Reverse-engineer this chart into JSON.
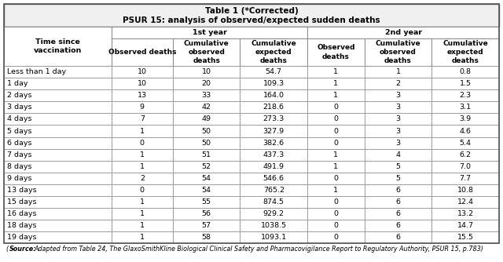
{
  "title_line1": "Table 1 (*Corrected)",
  "title_line2": "PSUR 15: analysis of observed/expected sudden deaths",
  "sub_headers": [
    "Observed deaths",
    "Cumulative\nobserved\ndeaths",
    "Cumulative\nexpected\ndeaths",
    "Observed\ndeaths",
    "Cumulative\nobserved\ndeaths",
    "Cumulative\nexpected\ndeaths"
  ],
  "rows": [
    [
      "Less than 1 day",
      "10",
      "10",
      "54.7",
      "1",
      "1",
      "0.8"
    ],
    [
      "1 day",
      "10",
      "20",
      "109.3",
      "1",
      "2",
      "1.5"
    ],
    [
      "2 days",
      "13",
      "33",
      "164.0",
      "1",
      "3",
      "2.3"
    ],
    [
      "3 days",
      "9",
      "42",
      "218.6",
      "0",
      "3",
      "3.1"
    ],
    [
      "4 days",
      "7",
      "49",
      "273.3",
      "0",
      "3",
      "3.9"
    ],
    [
      "5 days",
      "1",
      "50",
      "327.9",
      "0",
      "3",
      "4.6"
    ],
    [
      "6 days",
      "0",
      "50",
      "382.6",
      "0",
      "3",
      "5.4"
    ],
    [
      "7 days",
      "1",
      "51",
      "437.3",
      "1",
      "4",
      "6.2"
    ],
    [
      "8 days",
      "1",
      "52",
      "491.9",
      "1",
      "5",
      "7.0"
    ],
    [
      "9 days",
      "2",
      "54",
      "546.6",
      "0",
      "5",
      "7.7"
    ],
    [
      "13 days",
      "0",
      "54",
      "765.2",
      "1",
      "6",
      "10.8"
    ],
    [
      "15 days",
      "1",
      "55",
      "874.5",
      "0",
      "6",
      "12.4"
    ],
    [
      "16 days",
      "1",
      "56",
      "929.2",
      "0",
      "6",
      "13.2"
    ],
    [
      "18 days",
      "1",
      "57",
      "1038.5",
      "0",
      "6",
      "14.7"
    ],
    [
      "19 days",
      "1",
      "58",
      "1093.1",
      "0",
      "6",
      "15.5"
    ]
  ],
  "bg_color": "#ffffff",
  "header_bg": "#ffffff",
  "cell_bg": "#ffffff",
  "border_color": "#888888",
  "outer_border_color": "#555555",
  "title_bg": "#f0f0f0",
  "col_widths_rel": [
    1.55,
    0.88,
    0.97,
    0.97,
    0.82,
    0.97,
    0.97
  ],
  "title_fontsize": 7.5,
  "header_fontsize": 6.8,
  "cell_fontsize": 6.8,
  "footnote_fontsize": 5.8,
  "footnote": "Adapted from Table 24, The GlaxoSmithKline Biological Clinical Safety and Pharmacovigilance Report to Regulatory Authority, PSUR 15, p.783)"
}
